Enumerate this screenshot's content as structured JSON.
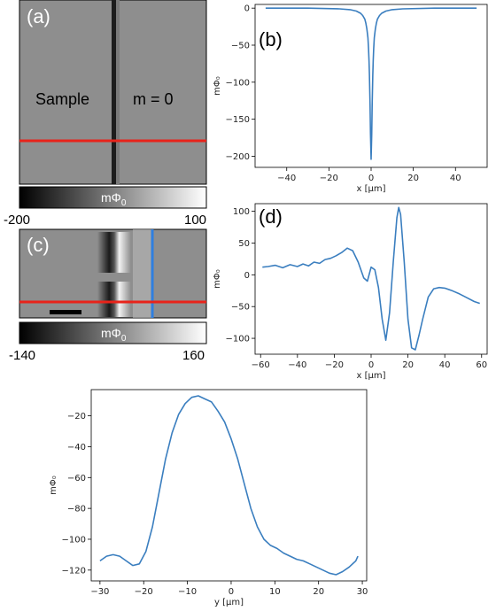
{
  "image_a": {
    "label": "(a)",
    "sample_text": "Sample",
    "m_text": "m = 0",
    "colorbar": {
      "label": "mΦ",
      "label_sub": "0",
      "min_label": "-200",
      "max_label": "100"
    }
  },
  "image_c": {
    "label": "(c)",
    "colorbar": {
      "label": "mΦ",
      "label_sub": "0",
      "min_label": "-140",
      "max_label": "160"
    }
  },
  "colors": {
    "line": "#3a7ebf",
    "red": "#e8231a",
    "blue": "#2f7fe0"
  },
  "chart_data": [
    {
      "type": "line",
      "panel_label": "(b)",
      "xlabel": "x [μm]",
      "ylabel": "mΦ₀",
      "xlim": [
        -55,
        55
      ],
      "ylim": [
        -215,
        5
      ],
      "xticks": [
        -40,
        -20,
        0,
        20,
        40
      ],
      "yticks": [
        0,
        -50,
        -100,
        -150,
        -200
      ],
      "xtick_labels": [
        "−40",
        "−20",
        "0",
        "20",
        "40"
      ],
      "ytick_labels": [
        "0",
        "−50",
        "−100",
        "−150",
        "−200"
      ],
      "x": [
        -50,
        -30,
        -15,
        -10,
        -7,
        -5,
        -4,
        -3,
        -2.5,
        -2,
        -1.5,
        -1.2,
        -1,
        -0.8,
        -0.5,
        -0.3,
        0,
        0.3,
        0.5,
        0.8,
        1,
        1.2,
        1.5,
        2,
        2.5,
        3,
        4,
        5,
        7,
        10,
        15,
        30,
        50
      ],
      "y": [
        0,
        0,
        -1,
        -2,
        -4,
        -7,
        -10,
        -15,
        -20,
        -28,
        -40,
        -55,
        -70,
        -90,
        -130,
        -170,
        -204,
        -170,
        -130,
        -90,
        -70,
        -55,
        -40,
        -28,
        -20,
        -15,
        -10,
        -7,
        -4,
        -2,
        -1,
        0,
        0
      ]
    },
    {
      "type": "line",
      "panel_label": "(d)",
      "xlabel": "x [μm]",
      "ylabel": "mΦ₀",
      "xlim": [
        -63,
        63
      ],
      "ylim": [
        -125,
        112
      ],
      "xticks": [
        -60,
        -40,
        -20,
        0,
        20,
        40,
        60
      ],
      "yticks": [
        100,
        50,
        0,
        -50,
        -100
      ],
      "xtick_labels": [
        "−60",
        "−40",
        "−20",
        "0",
        "20",
        "40",
        "60"
      ],
      "ytick_labels": [
        "100",
        "50",
        "0",
        "−50",
        "−100"
      ],
      "x": [
        -59,
        -56,
        -52,
        -48,
        -44,
        -40,
        -37,
        -34,
        -31,
        -28,
        -25,
        -22,
        -19,
        -16,
        -13,
        -10,
        -7,
        -4,
        -2,
        0,
        2,
        4,
        6,
        8,
        10,
        12,
        14,
        15,
        16,
        18,
        20,
        22,
        24,
        26,
        28,
        31,
        34,
        37,
        40,
        44,
        48,
        52,
        56,
        59
      ],
      "y": [
        12,
        13,
        15,
        11,
        16,
        13,
        17,
        14,
        20,
        18,
        24,
        26,
        30,
        35,
        42,
        38,
        20,
        -5,
        -10,
        12,
        8,
        -20,
        -70,
        -103,
        -60,
        20,
        90,
        106,
        95,
        20,
        -70,
        -115,
        -118,
        -95,
        -70,
        -35,
        -22,
        -20,
        -21,
        -25,
        -30,
        -36,
        -42,
        -45
      ]
    },
    {
      "type": "line",
      "xlabel": "y [μm]",
      "ylabel": "mΦ₀",
      "xlim": [
        -32,
        31
      ],
      "ylim": [
        -127,
        -3
      ],
      "xticks": [
        -30,
        -20,
        -10,
        0,
        10,
        20,
        30
      ],
      "yticks": [
        -20,
        -40,
        -60,
        -80,
        -100,
        -120
      ],
      "xtick_labels": [
        "−30",
        "−20",
        "−10",
        "0",
        "10",
        "20",
        "30"
      ],
      "ytick_labels": [
        "−20",
        "−40",
        "−60",
        "−80",
        "−100",
        "−120"
      ],
      "x": [
        -30,
        -28.5,
        -27,
        -25.5,
        -24,
        -22.5,
        -21,
        -19.5,
        -18,
        -16.5,
        -15,
        -13.5,
        -12,
        -10.5,
        -9,
        -7.5,
        -6,
        -4.5,
        -3,
        -1.5,
        0,
        1.5,
        3,
        4.5,
        6,
        7.5,
        9,
        10.5,
        12,
        13.5,
        15,
        16.5,
        18,
        19.5,
        21,
        22.5,
        24,
        25.5,
        27,
        28.5,
        29
      ],
      "y": [
        -114,
        -111,
        -110,
        -111,
        -114,
        -117,
        -116,
        -108,
        -92,
        -70,
        -48,
        -31,
        -19,
        -12,
        -8,
        -7,
        -9,
        -11,
        -17,
        -24,
        -35,
        -48,
        -64,
        -80,
        -92,
        -100,
        -104,
        -106,
        -109,
        -111,
        -113,
        -114,
        -116,
        -118,
        -120,
        -122,
        -123,
        -121,
        -118,
        -114,
        -111
      ]
    }
  ]
}
